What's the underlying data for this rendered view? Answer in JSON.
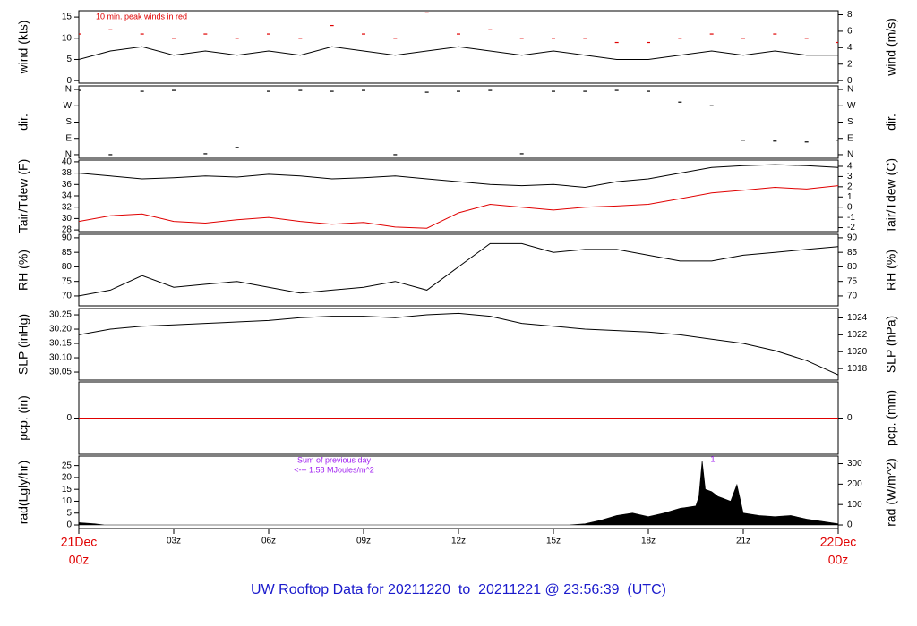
{
  "chart_data": [
    {
      "type": "line",
      "ylabel": "wind (kts)",
      "y2label": "wind (m/s)",
      "annotations": [
        "10 min. peak winds in red"
      ],
      "annotation_color": "#e00000",
      "xlim": [
        0,
        24
      ],
      "ylim": [
        -0.6,
        16.5
      ],
      "yticks": [
        0,
        5,
        10,
        15
      ],
      "y2lim": [
        -0.31,
        8.49
      ],
      "y2ticks": [
        0,
        2,
        4,
        6,
        8
      ],
      "x": [
        0,
        1,
        2,
        3,
        4,
        5,
        6,
        7,
        8,
        9,
        10,
        11,
        12,
        13,
        14,
        15,
        16,
        17,
        18,
        19,
        20,
        21,
        22,
        23,
        24
      ],
      "series": [
        {
          "name": "wind",
          "mode": "line",
          "color": "#000000",
          "values": [
            5,
            7,
            8,
            6,
            7,
            6,
            7,
            6,
            8,
            7,
            6,
            7,
            8,
            7,
            6,
            7,
            6,
            5,
            5,
            6,
            7,
            6,
            7,
            6,
            6
          ]
        },
        {
          "name": "peak",
          "mode": "points",
          "color": "#e00000",
          "values": [
            11,
            12,
            11,
            10,
            11,
            10,
            11,
            10,
            13,
            11,
            10,
            16,
            11,
            12,
            10,
            10,
            10,
            9,
            9,
            10,
            11,
            10,
            11,
            10,
            9
          ]
        }
      ]
    },
    {
      "type": "line",
      "ylabel": "dir.",
      "y2label": "dir.",
      "xlim": [
        0,
        24
      ],
      "ylim": [
        -20,
        380
      ],
      "yticks": [
        {
          "value": 0,
          "label": "N"
        },
        {
          "value": 90,
          "label": "E"
        },
        {
          "value": 180,
          "label": "S"
        },
        {
          "value": 270,
          "label": "W"
        },
        {
          "value": 360,
          "label": "N"
        }
      ],
      "y2lim": [
        -20,
        380
      ],
      "y2ticks": [
        {
          "value": 0,
          "label": "N"
        },
        {
          "value": 90,
          "label": "E"
        },
        {
          "value": 180,
          "label": "S"
        },
        {
          "value": 270,
          "label": "W"
        },
        {
          "value": 360,
          "label": "N"
        }
      ],
      "x": [
        0,
        1,
        2,
        3,
        4,
        5,
        6,
        7,
        8,
        9,
        10,
        11,
        12,
        13,
        14,
        15,
        16,
        17,
        18,
        19,
        20,
        21,
        22,
        23,
        24
      ],
      "series": [
        {
          "name": "dir",
          "mode": "points",
          "color": "#000000",
          "values": [
            355,
            0,
            350,
            355,
            5,
            40,
            350,
            355,
            350,
            355,
            0,
            345,
            350,
            355,
            5,
            350,
            350,
            355,
            350,
            290,
            270,
            80,
            75,
            70,
            80
          ]
        }
      ]
    },
    {
      "type": "line",
      "ylabel": "Tair/Tdew (F)",
      "y2label": "Tair/Tdew (C)",
      "xlim": [
        0,
        24
      ],
      "ylim": [
        27.7,
        40.3
      ],
      "yticks": [
        28,
        30,
        32,
        34,
        36,
        38,
        40
      ],
      "y2lim": [
        -2.389,
        4.611
      ],
      "y2ticks": [
        -2,
        -1,
        0,
        1,
        2,
        3,
        4
      ],
      "x": [
        0,
        1,
        2,
        3,
        4,
        5,
        6,
        7,
        8,
        9,
        10,
        11,
        12,
        13,
        14,
        15,
        16,
        17,
        18,
        19,
        20,
        21,
        22,
        23,
        24
      ],
      "series": [
        {
          "name": "Tair",
          "mode": "line",
          "color": "#000000",
          "values": [
            38,
            37.5,
            37,
            37.2,
            37.5,
            37.3,
            37.8,
            37.5,
            37,
            37.2,
            37.5,
            37,
            36.5,
            36,
            35.8,
            36,
            35.5,
            36.5,
            37,
            38,
            39,
            39.3,
            39.5,
            39.3,
            39
          ]
        },
        {
          "name": "Tdew",
          "mode": "line",
          "color": "#e00000",
          "values": [
            29.5,
            30.5,
            30.8,
            29.5,
            29.2,
            29.8,
            30.2,
            29.5,
            29,
            29.3,
            28.5,
            28.3,
            31,
            32.5,
            32,
            31.5,
            32,
            32.2,
            32.5,
            33.5,
            34.5,
            35,
            35.5,
            35.2,
            35.8
          ]
        }
      ]
    },
    {
      "type": "line",
      "ylabel": "RH (%)",
      "y2label": "RH (%)",
      "xlim": [
        0,
        24
      ],
      "ylim": [
        66.6,
        91.2
      ],
      "yticks": [
        70,
        75,
        80,
        85,
        90
      ],
      "y2lim": [
        66.6,
        91.2
      ],
      "y2ticks": [
        70,
        75,
        80,
        85,
        90
      ],
      "x": [
        0,
        1,
        2,
        3,
        4,
        5,
        6,
        7,
        8,
        9,
        10,
        11,
        12,
        13,
        14,
        15,
        16,
        17,
        18,
        19,
        20,
        21,
        22,
        23,
        24
      ],
      "series": [
        {
          "name": "RH",
          "mode": "line",
          "color": "#000000",
          "values": [
            70,
            72,
            77,
            73,
            74,
            75,
            73,
            71,
            72,
            73,
            75,
            72,
            80,
            88,
            88,
            85,
            86,
            86,
            84,
            82,
            82,
            84,
            85,
            86,
            87
          ]
        }
      ]
    },
    {
      "type": "line",
      "ylabel": "SLP (inHg)",
      "y2label": "SLP (hPa)",
      "xlim": [
        0,
        24
      ],
      "ylim": [
        30.022,
        30.272
      ],
      "yticks": [
        30.05,
        {
          "value": 30.1,
          "label": "30.10"
        },
        30.15,
        {
          "value": 30.2,
          "label": "30.20"
        },
        30.25
      ],
      "y2lim": [
        1016.64,
        1025.11
      ],
      "y2ticks": [
        1018,
        1020,
        1022,
        1024
      ],
      "x": [
        0,
        1,
        2,
        3,
        4,
        5,
        6,
        7,
        8,
        9,
        10,
        11,
        12,
        13,
        14,
        15,
        16,
        17,
        18,
        19,
        20,
        21,
        22,
        23,
        24
      ],
      "series": [
        {
          "name": "SLP",
          "mode": "line",
          "color": "#000000",
          "values": [
            30.18,
            30.2,
            30.21,
            30.215,
            30.22,
            30.225,
            30.23,
            30.24,
            30.245,
            30.245,
            30.24,
            30.25,
            30.255,
            30.245,
            30.22,
            30.21,
            30.2,
            30.195,
            30.19,
            30.18,
            30.165,
            30.15,
            30.125,
            30.09,
            30.04
          ]
        }
      ]
    },
    {
      "type": "line",
      "ylabel": "pcp. (in)",
      "y2label": "pcp. (mm)",
      "xlim": [
        0,
        24
      ],
      "ylim": [
        -1,
        1
      ],
      "yticks": [
        0
      ],
      "y2lim": [
        -1,
        1
      ],
      "y2ticks": [
        0
      ],
      "x": [
        0,
        24
      ],
      "series": [
        {
          "name": "pcp",
          "mode": "line",
          "color": "#e00000",
          "values": [
            0,
            0
          ]
        }
      ]
    },
    {
      "type": "line",
      "ylabel": "rad(Lgly/hr)",
      "y2label": "rad (W/m^2)",
      "annotations": [
        "Sum of previous day",
        "<--- 1.58 MJoules/m^2",
        "1"
      ],
      "annotation_color": "#a020f0",
      "xlim": [
        0,
        24
      ],
      "ylim": [
        -1.5,
        29
      ],
      "yticks": [
        0,
        5,
        10,
        15,
        20,
        25
      ],
      "y2lim": [
        -17.4,
        337.3
      ],
      "y2ticks": [
        0,
        100,
        200,
        300
      ],
      "x": [
        0,
        0.5,
        0.8,
        15.5,
        16,
        16.5,
        17,
        17.5,
        18,
        18.5,
        19,
        19.5,
        19.6,
        19.7,
        19.8,
        20,
        20.2,
        20.4,
        20.6,
        20.8,
        21,
        21.5,
        22,
        22.5,
        23,
        23.5,
        24
      ],
      "series": [
        {
          "name": "rad",
          "mode": "area",
          "color": "#000000",
          "values": [
            1,
            0.5,
            0,
            0,
            0.5,
            2,
            4,
            5,
            3.5,
            5,
            7,
            8,
            12,
            27,
            15,
            14,
            12,
            11,
            10,
            17,
            5,
            4,
            3.5,
            4,
            2.5,
            1.5,
            0.5
          ]
        }
      ],
      "xticks": [
        {
          "value": 0,
          "label": "00z",
          "date": "21Dec"
        },
        {
          "value": 3,
          "label": "03z"
        },
        {
          "value": 6,
          "label": "06z"
        },
        {
          "value": 9,
          "label": "09z"
        },
        {
          "value": 12,
          "label": "12z"
        },
        {
          "value": 15,
          "label": "15z"
        },
        {
          "value": 18,
          "label": "18z"
        },
        {
          "value": 21,
          "label": "21z"
        },
        {
          "value": 24,
          "label": "00z",
          "date": "22Dec"
        }
      ]
    }
  ],
  "footer": "UW Rooftop Data for 20211220  to  20211221 @ 23:56:39  (UTC)"
}
